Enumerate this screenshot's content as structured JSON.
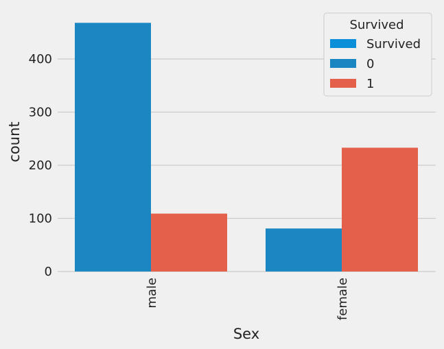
{
  "chart_data": {
    "type": "bar",
    "categories": [
      "male",
      "female"
    ],
    "series": [
      {
        "name": "0",
        "values": [
          468,
          81
        ],
        "color": "#1a86c2"
      },
      {
        "name": "1",
        "values": [
          109,
          233
        ],
        "color": "#e5604a"
      }
    ],
    "xlabel": "Sex",
    "ylabel": "count",
    "ylim": [
      0,
      490
    ],
    "yticks": [
      0,
      100,
      200,
      300,
      400
    ],
    "grid": true,
    "legend": {
      "title": "Survived",
      "placement": "top-right",
      "entries": [
        {
          "label": "Survived",
          "color": "#0a8fd8"
        },
        {
          "label": "0",
          "color": "#1a86c2"
        },
        {
          "label": "1",
          "color": "#e5604a"
        }
      ]
    }
  },
  "colors": {
    "background": "#f0f0f0",
    "grid": "#cbcbcb"
  }
}
